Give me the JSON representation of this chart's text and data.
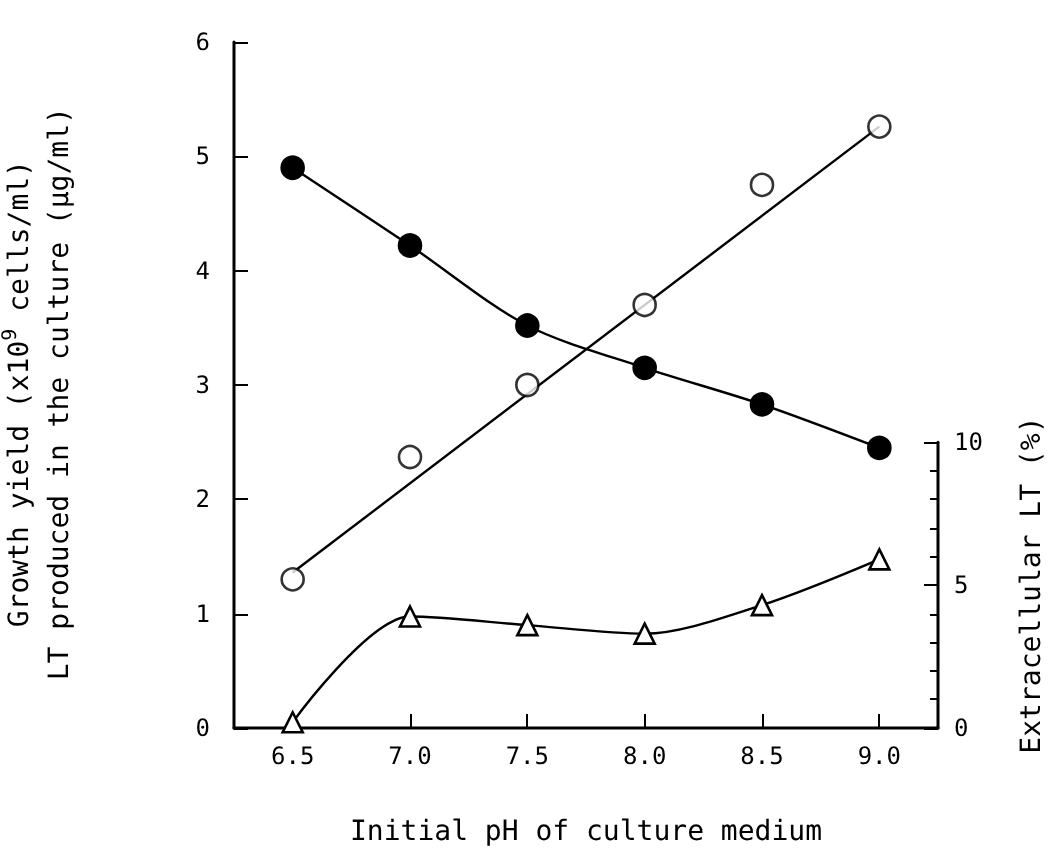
{
  "chart_data": {
    "type": "line",
    "xlabel": "Initial pH of culture medium",
    "ylabel": "Growth yield (x10$^{9}$ cells/ml)\nLT produced in the culture (µg/ml)",
    "y2label": "Extracellular LT (%)",
    "x": [
      6.5,
      7.0,
      7.5,
      8.0,
      8.5,
      9.0
    ],
    "xlim": [
      6.25,
      9.25
    ],
    "xticks": [
      {
        "value": 6.5,
        "label": "6.5"
      },
      {
        "value": 7.0,
        "label": "7.0"
      },
      {
        "value": 7.5,
        "label": "7.5"
      },
      {
        "value": 8.0,
        "label": "8.0"
      },
      {
        "value": 8.5,
        "label": "8.5"
      },
      {
        "value": 9.0,
        "label": "9.0"
      }
    ],
    "ylim": [
      0,
      6
    ],
    "yticks": [
      0,
      1,
      2,
      3,
      4,
      5,
      6
    ],
    "y2lim": [
      0,
      10
    ],
    "y2ticks": [
      0,
      5,
      10
    ],
    "grid": false,
    "series": [
      {
        "color": "#000000",
        "marker": "circle",
        "values": [
          4.9,
          4.22,
          3.52,
          3.15,
          2.83,
          2.45
        ]
      },
      {
        "type": "scatter",
        "color": "#000000",
        "marker": "circle",
        "values": [
          1.3,
          2.37,
          3.0,
          3.7,
          4.75,
          5.26
        ]
      },
      {
        "color": "#000000",
        "marker": "none",
        "x": [
          6.5,
          9.0
        ],
        "values": [
          1.36,
          5.26
        ]
      },
      {
        "color": "#000000",
        "marker": "triangle",
        "axis": "y2",
        "values": [
          0.2,
          3.9,
          3.6,
          3.3,
          4.3,
          5.9
        ]
      }
    ]
  }
}
